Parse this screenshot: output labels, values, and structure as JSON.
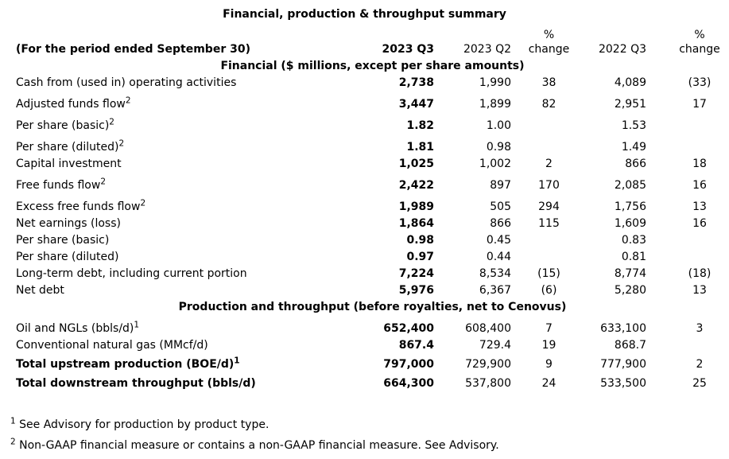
{
  "title": "Financial, production & throughput summary",
  "colors": {
    "text": "#000000",
    "background": "#ffffff"
  },
  "table": {
    "period_label": "(For the period ended September 30)",
    "columns": [
      {
        "label": "2023 Q3",
        "bold": true
      },
      {
        "label": "2023 Q2",
        "bold": false
      },
      {
        "top": "%",
        "label": "change",
        "bold": false
      },
      {
        "label": "2022 Q3",
        "bold": false
      },
      {
        "top": "%",
        "label": "change",
        "bold": false
      }
    ],
    "sections": [
      {
        "heading": "Financial ($ millions, except per share amounts)",
        "rows": [
          {
            "label": "Cash from (used in) operating activities",
            "sup": "",
            "total": false,
            "values": [
              "2,738",
              "1,990",
              "38",
              "4,089",
              "(33)"
            ]
          },
          {
            "label": "Adjusted funds flow",
            "sup": "2",
            "total": false,
            "values": [
              "3,447",
              "1,899",
              "82",
              "2,951",
              "17"
            ]
          },
          {
            "label": "Per share (basic)",
            "sup": "2",
            "total": false,
            "values": [
              "1.82",
              "1.00",
              "",
              "1.53",
              ""
            ]
          },
          {
            "label": "Per share (diluted)",
            "sup": "2",
            "total": false,
            "values": [
              "1.81",
              "0.98",
              "",
              "1.49",
              ""
            ]
          },
          {
            "label": "Capital investment",
            "sup": "",
            "total": false,
            "values": [
              "1,025",
              "1,002",
              "2",
              "866",
              "18"
            ]
          },
          {
            "label": "Free funds flow",
            "sup": "2",
            "total": false,
            "values": [
              "2,422",
              "897",
              "170",
              "2,085",
              "16"
            ]
          },
          {
            "label": "Excess free funds flow",
            "sup": "2",
            "total": false,
            "values": [
              "1,989",
              "505",
              "294",
              "1,756",
              "13"
            ]
          },
          {
            "label": "Net earnings (loss)",
            "sup": "",
            "total": false,
            "values": [
              "1,864",
              "866",
              "115",
              "1,609",
              "16"
            ]
          },
          {
            "label": "Per share (basic)",
            "sup": "",
            "total": false,
            "values": [
              "0.98",
              "0.45",
              "",
              "0.83",
              ""
            ]
          },
          {
            "label": "Per share (diluted)",
            "sup": "",
            "total": false,
            "values": [
              "0.97",
              "0.44",
              "",
              "0.81",
              ""
            ]
          },
          {
            "label": "Long-term debt, including current portion",
            "sup": "",
            "total": false,
            "values": [
              "7,224",
              "8,534",
              "(15)",
              "8,774",
              "(18)"
            ]
          },
          {
            "label": "Net debt",
            "sup": "",
            "total": false,
            "values": [
              "5,976",
              "6,367",
              "(6)",
              "5,280",
              "13"
            ]
          }
        ]
      },
      {
        "heading": "Production and throughput (before royalties, net to Cenovus)",
        "rows": [
          {
            "label": "Oil and NGLs (bbls/d)",
            "sup": "1",
            "total": false,
            "values": [
              "652,400",
              "608,400",
              "7",
              "633,100",
              "3"
            ]
          },
          {
            "label": "Conventional natural gas (MMcf/d)",
            "sup": "",
            "total": false,
            "values": [
              "867.4",
              "729.4",
              "19",
              "868.7",
              ""
            ]
          },
          {
            "label": "Total upstream production (BOE/d)",
            "sup": "1",
            "total": true,
            "values": [
              "797,000",
              "729,900",
              "9",
              "777,900",
              "2"
            ]
          },
          {
            "label": "Total downstream throughput (bbls/d)",
            "sup": "",
            "total": true,
            "values": [
              "664,300",
              "537,800",
              "24",
              "533,500",
              "25"
            ]
          }
        ]
      }
    ]
  },
  "footnotes": [
    {
      "marker": "1",
      "text": "See Advisory for production by product type."
    },
    {
      "marker": "2",
      "text": "Non-GAAP financial measure or contains a non-GAAP financial measure. See Advisory."
    }
  ]
}
